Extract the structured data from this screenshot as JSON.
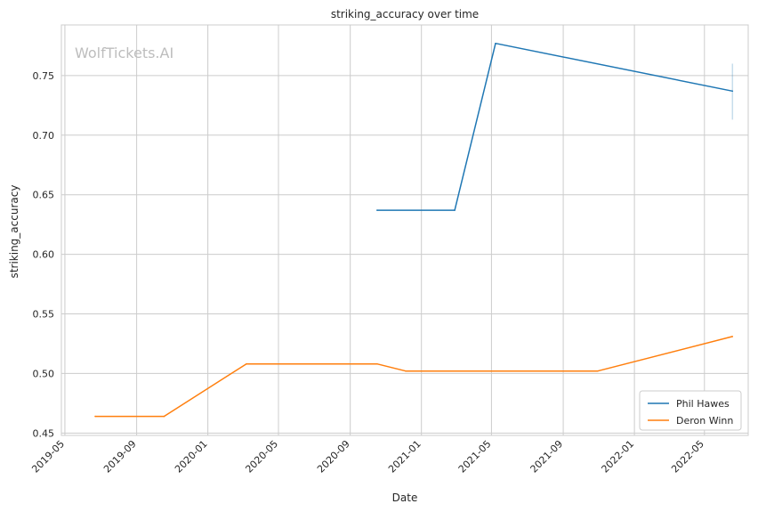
{
  "chart_data": {
    "type": "line",
    "title": "striking_accuracy over time",
    "xlabel": "Date",
    "ylabel": "striking_accuracy",
    "watermark": "WolfTickets.AI",
    "x_ticks": [
      "2019-05",
      "2019-09",
      "2020-01",
      "2020-05",
      "2020-09",
      "2021-01",
      "2021-05",
      "2021-09",
      "2022-01",
      "2022-05"
    ],
    "y_ticks": [
      "0.45",
      "0.50",
      "0.55",
      "0.60",
      "0.65",
      "0.70",
      "0.75"
    ],
    "xlim": [
      "2019-04-25",
      "2022-07-15"
    ],
    "ylim": [
      0.448,
      0.7925
    ],
    "grid": true,
    "legend_position": "lower-right",
    "series": [
      {
        "name": "Phil Hawes",
        "color": "#1f77b4",
        "points": [
          {
            "x": "2020-10-17",
            "y": 0.637
          },
          {
            "x": "2021-02-27",
            "y": 0.637
          },
          {
            "x": "2021-05-08",
            "y": 0.777
          },
          {
            "x": "2022-06-18",
            "y": 0.737
          }
        ],
        "error_bar": {
          "x": "2022-06-18",
          "low": 0.713,
          "high": 0.76
        }
      },
      {
        "name": "Deron Winn",
        "color": "#ff7f0e",
        "points": [
          {
            "x": "2019-06-22",
            "y": 0.464
          },
          {
            "x": "2019-10-18",
            "y": 0.464
          },
          {
            "x": "2020-03-07",
            "y": 0.508
          },
          {
            "x": "2020-10-17",
            "y": 0.508
          },
          {
            "x": "2020-12-05",
            "y": 0.502
          },
          {
            "x": "2021-10-30",
            "y": 0.502
          },
          {
            "x": "2022-06-18",
            "y": 0.531
          }
        ]
      }
    ]
  }
}
